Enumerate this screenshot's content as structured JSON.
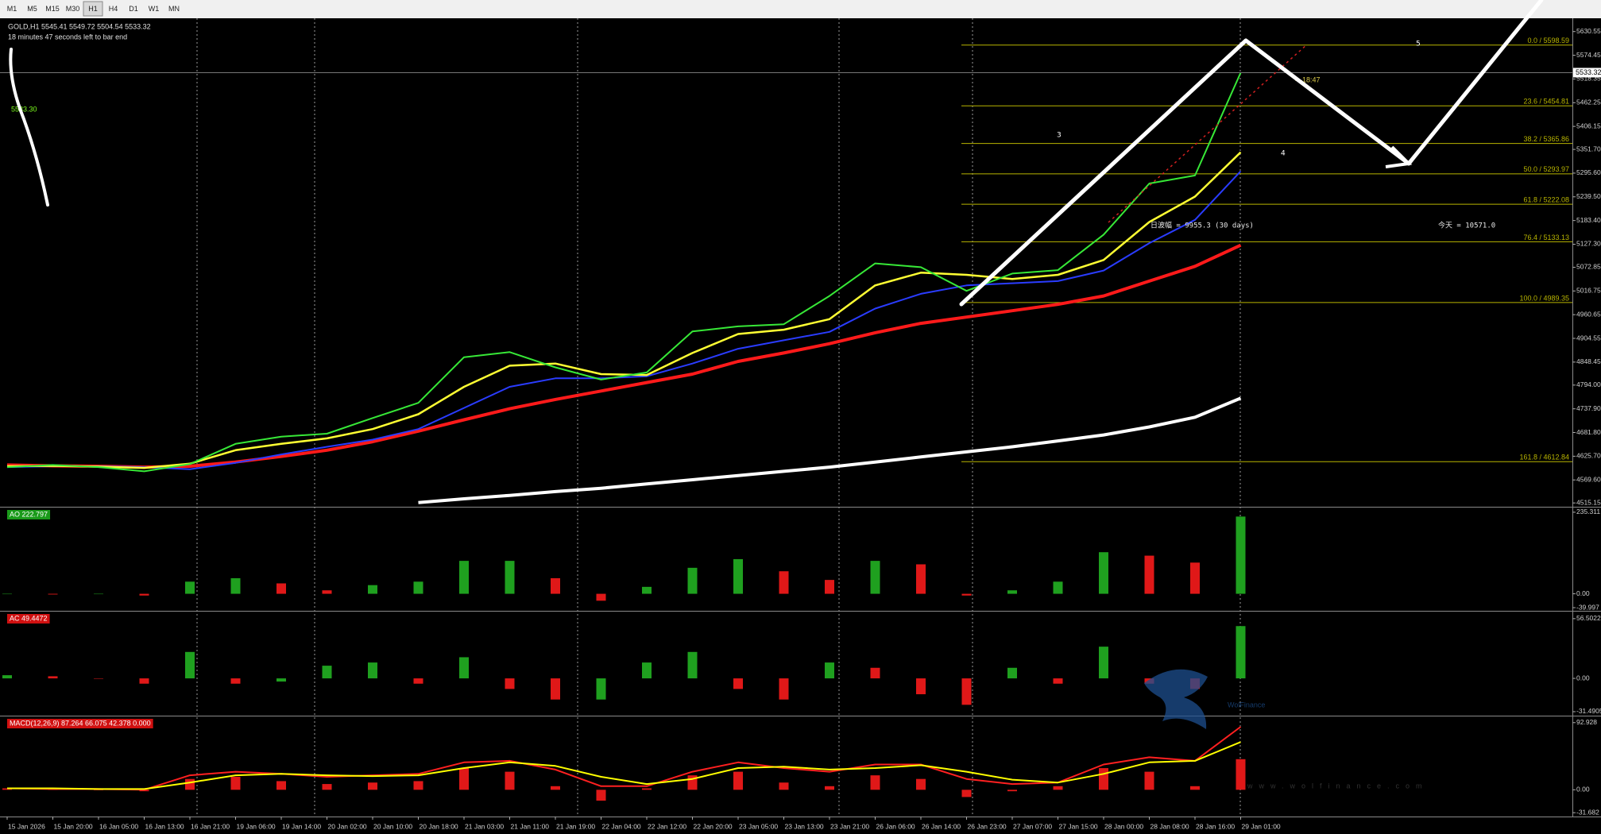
{
  "toolbar": {
    "timeframes": [
      "M1",
      "M5",
      "M15",
      "M30",
      "H1",
      "H4",
      "D1",
      "W1",
      "MN"
    ],
    "active": 4
  },
  "chart_data": [
    {
      "type": "line",
      "title": "GOLD,H1  5545.41 5549.72 5504.54 5533.32",
      "subtitle": "18 minutes 47 seconds left to bar end",
      "categories": [
        "15 Jan 2026",
        "15 Jan 20:00",
        "16 Jan 05:00",
        "16 Jan 13:00",
        "16 Jan 21:00",
        "19 Jan 06:00",
        "19 Jan 14:00",
        "20 Jan 02:00",
        "20 Jan 10:00",
        "20 Jan 18:00",
        "21 Jan 03:00",
        "21 Jan 11:00",
        "21 Jan 19:00",
        "22 Jan 04:00",
        "22 Jan 12:00",
        "22 Jan 20:00",
        "23 Jan 05:00",
        "23 Jan 13:00",
        "23 Jan 21:00",
        "26 Jan 06:00",
        "26 Jan 14:00",
        "26 Jan 23:00",
        "27 Jan 07:00",
        "27 Jan 15:00",
        "28 Jan 00:00",
        "28 Jan 08:00",
        "28 Jan 16:00",
        "29 Jan 01:00"
      ],
      "series": [
        {
          "color": "#ffffff",
          "width": 4,
          "values": [
            null,
            null,
            null,
            null,
            null,
            null,
            null,
            null,
            null,
            4516,
            4525,
            4533,
            4542,
            4550,
            4560,
            4570,
            4580,
            4590,
            4600,
            4612,
            4624,
            4636,
            4648,
            4662,
            4676,
            4695,
            4718,
            4763
          ]
        },
        {
          "color": "#ff1a1a",
          "width": 4,
          "values": [
            4605,
            4603,
            4602,
            4600,
            4602,
            4612,
            4625,
            4640,
            4660,
            4685,
            4712,
            4738,
            4760,
            4780,
            4800,
            4820,
            4850,
            4870,
            4892,
            4918,
            4940,
            4955,
            4970,
            4985,
            5005,
            5040,
            5075,
            5125
          ]
        },
        {
          "color": "#2a3cff",
          "width": 2,
          "values": [
            4600,
            4602,
            4602,
            4600,
            4595,
            4610,
            4630,
            4648,
            4665,
            4690,
            4740,
            4790,
            4810,
            4810,
            4815,
            4845,
            4880,
            4900,
            4920,
            4975,
            5010,
            5030,
            5035,
            5040,
            5065,
            5130,
            5185,
            5300
          ]
        },
        {
          "color": "#ffff33",
          "width": 2.5,
          "values": [
            4602,
            4603,
            4601,
            4598,
            4608,
            4640,
            4655,
            4668,
            4690,
            4725,
            4790,
            4840,
            4845,
            4820,
            4818,
            4870,
            4915,
            4925,
            4950,
            5030,
            5060,
            5055,
            5045,
            5055,
            5090,
            5180,
            5240,
            5345
          ]
        },
        {
          "color": "#37e837",
          "width": 2,
          "values": [
            4600,
            4605,
            4600,
            4590,
            4607,
            4655,
            4672,
            4679,
            4716,
            4752,
            4860,
            4872,
            4836,
            4807,
            4824,
            4921,
            4933,
            4938,
            5005,
            5082,
            5073,
            5017,
            5058,
            5066,
            5150,
            5271,
            5290,
            5533.3
          ]
        }
      ],
      "ylim": [
        4508,
        5662
      ],
      "yticks": [
        5630.55,
        5574.45,
        5518.35,
        5462.25,
        5406.15,
        {
          "value": 5351.7,
          "label": "5351.70"
        },
        {
          "value": 5295.6,
          "label": "5295.60"
        },
        {
          "value": 5239.5,
          "label": "5239.50"
        },
        {
          "value": 5183.4,
          "label": "5183.40"
        },
        {
          "value": 5127.3,
          "label": "5127.30"
        },
        5072.85,
        5016.75,
        4960.65,
        4904.55,
        4848.45,
        {
          "value": 4794,
          "label": "4794.00"
        },
        {
          "value": 4737.9,
          "label": "4737.90"
        },
        {
          "value": 4681.8,
          "label": "4681.80"
        },
        {
          "value": 4625.7,
          "label": "4625.70"
        },
        {
          "value": 4569.6,
          "label": "4569.60"
        },
        4515.15
      ],
      "last_price": 5533.32,
      "fibonacci": [
        {
          "value": 5598.59,
          "label": "0.0 / 5598.59"
        },
        {
          "value": 5454.81,
          "label": "23.6 / 5454.81"
        },
        {
          "value": 5365.86,
          "label": "38.2 / 5365.86"
        },
        {
          "value": 5293.97,
          "label": "50.0 / 5293.97"
        },
        {
          "value": 5222.08,
          "label": "61.8 / 5222.08"
        },
        {
          "value": 5133.13,
          "label": "76.4 / 5133.13"
        },
        {
          "value": 4989.35,
          "label": "100.0 / 4989.35"
        },
        {
          "value": 4612.84,
          "label": "161.8 / 4612.84"
        }
      ],
      "fib_color": "#b8b400"
    },
    {
      "type": "bar",
      "label": "AO 222.797",
      "label_color": "#1a9a1a",
      "up_color": "#1fa01f",
      "down_color": "#e01818",
      "values": [
        0,
        -2,
        -1,
        -5,
        35,
        45,
        30,
        10,
        25,
        35,
        95,
        95,
        45,
        -20,
        20,
        75,
        100,
        65,
        40,
        95,
        85,
        -5,
        10,
        35,
        120,
        110,
        90,
        222.797
      ],
      "ylim": [
        -44.5,
        246.5
      ],
      "yticks": [
        235.311,
        {
          "value": 0,
          "label": "0.00"
        },
        -39.997
      ]
    },
    {
      "type": "bar",
      "label": "AC 49.4472",
      "label_color": "#d01010",
      "up_color": "#1fa01f",
      "down_color": "#e01818",
      "values": [
        3,
        2,
        0,
        -5,
        25,
        -5,
        -3,
        12,
        15,
        -5,
        20,
        -10,
        -20,
        -20,
        15,
        25,
        -10,
        -20,
        15,
        10,
        -15,
        -25,
        10,
        -5,
        30,
        -5,
        -10,
        49.4472
      ],
      "ylim": [
        -34.5,
        62.4
      ],
      "yticks": [
        56.5022,
        {
          "value": 0,
          "label": "0.00"
        },
        -31.4905
      ]
    },
    {
      "type": "combo",
      "label": "MACD(12,26,9) 87.264 66.075 42.378 0.000",
      "label_color": "#d01010",
      "series": [
        {
          "type": "bar",
          "color": "#e01818",
          "values": [
            2,
            1,
            0,
            -2,
            15,
            18,
            12,
            8,
            10,
            12,
            30,
            25,
            5,
            -15,
            2,
            20,
            25,
            10,
            5,
            20,
            15,
            -10,
            -2,
            5,
            30,
            25,
            5,
            42.378
          ]
        },
        {
          "type": "line",
          "color": "#ff2020",
          "values": [
            2,
            1,
            1,
            0,
            20,
            25,
            22,
            18,
            20,
            22,
            38,
            40,
            28,
            5,
            5,
            25,
            38,
            30,
            25,
            35,
            35,
            15,
            8,
            10,
            35,
            45,
            40,
            87.264
          ]
        },
        {
          "type": "line",
          "color": "#ffff00",
          "values": [
            2,
            2,
            1,
            1,
            10,
            20,
            22,
            20,
            19,
            20,
            30,
            38,
            33,
            18,
            8,
            15,
            30,
            32,
            28,
            30,
            34,
            25,
            14,
            10,
            22,
            38,
            40,
            66.075
          ]
        }
      ],
      "ylim": [
        -37,
        100.4
      ],
      "yticks": [
        92.928,
        {
          "value": 0,
          "label": "0.00"
        },
        -31.682
      ]
    }
  ],
  "annotations": {
    "big_price": "5533.30",
    "timer": "—18:47",
    "range_30d": "日波幅 = 9955.3  (30 days)",
    "today": "今天 = 10571.0",
    "waves": [
      "3",
      "4",
      "5"
    ]
  },
  "watermark": {
    "brand": "WolFinance",
    "site": "www.wolfinance.com"
  }
}
